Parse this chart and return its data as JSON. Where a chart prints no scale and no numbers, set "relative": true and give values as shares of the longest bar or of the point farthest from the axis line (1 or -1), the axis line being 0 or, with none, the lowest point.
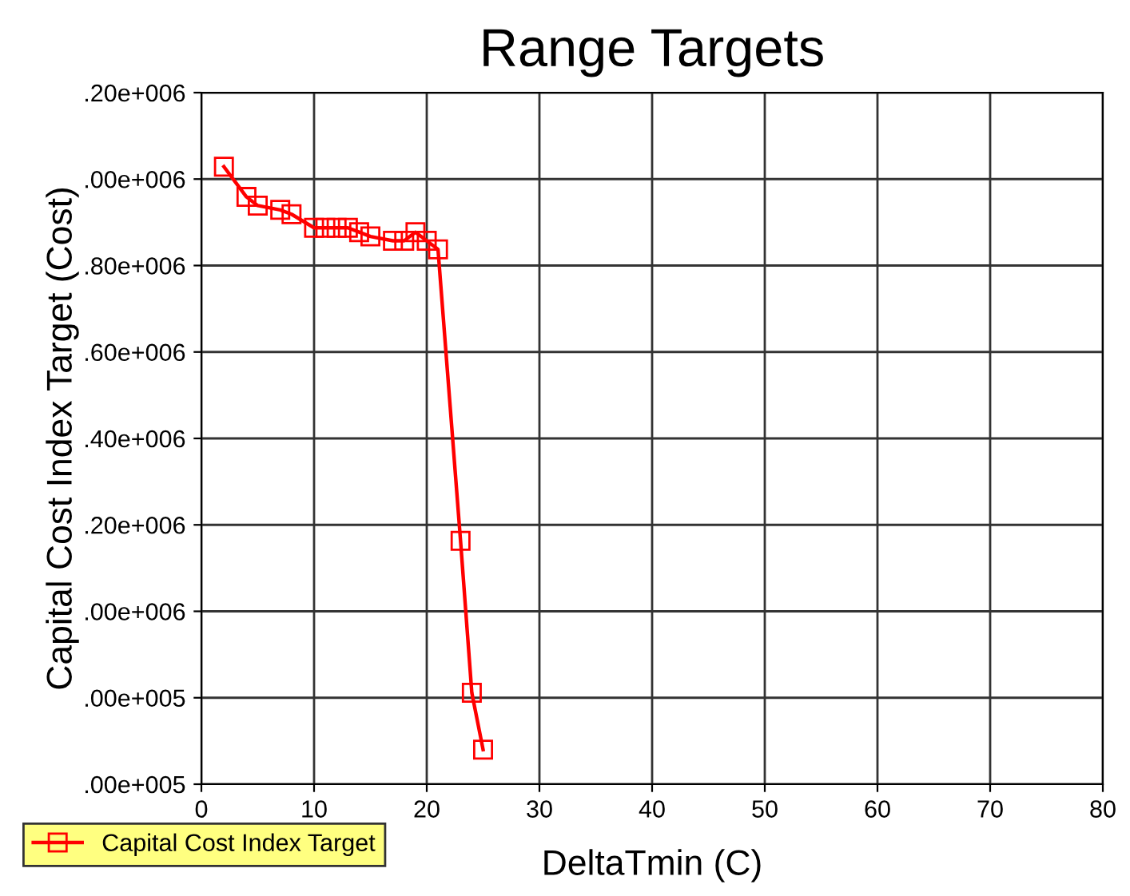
{
  "chart_data": {
    "type": "line",
    "title": "Range Targets",
    "xlabel": "DeltaTmin (C)",
    "ylabel": "Capital Cost Index Target (Cost)",
    "relative": true,
    "series": [
      {
        "name": "Capital Cost Index Target",
        "color": "#ff0000",
        "x": [
          2,
          4,
          5,
          7,
          8,
          10,
          11,
          12,
          13,
          14,
          15,
          17,
          18,
          19,
          20,
          21,
          23,
          24,
          25
        ],
        "values": [
          1,
          0.951,
          0.937,
          0.93,
          0.923,
          0.901,
          0.901,
          0.901,
          0.901,
          0.894,
          0.887,
          0.88,
          0.88,
          0.894,
          0.88,
          0.866,
          0.394,
          0.148,
          0.056
        ]
      }
    ],
    "xlim": [
      0,
      80
    ],
    "xticks": [
      0,
      10,
      20,
      30,
      40,
      50,
      60,
      70,
      80
    ],
    "annotations": [
      ".00e+005",
      ".00e+005",
      ".00e+006",
      ".20e+006",
      ".40e+006",
      ".60e+006",
      ".80e+006",
      ".00e+006",
      ".20e+006"
    ],
    "grid": true,
    "legend": "bottom left",
    "marker": "square",
    "line_style": "solid"
  }
}
